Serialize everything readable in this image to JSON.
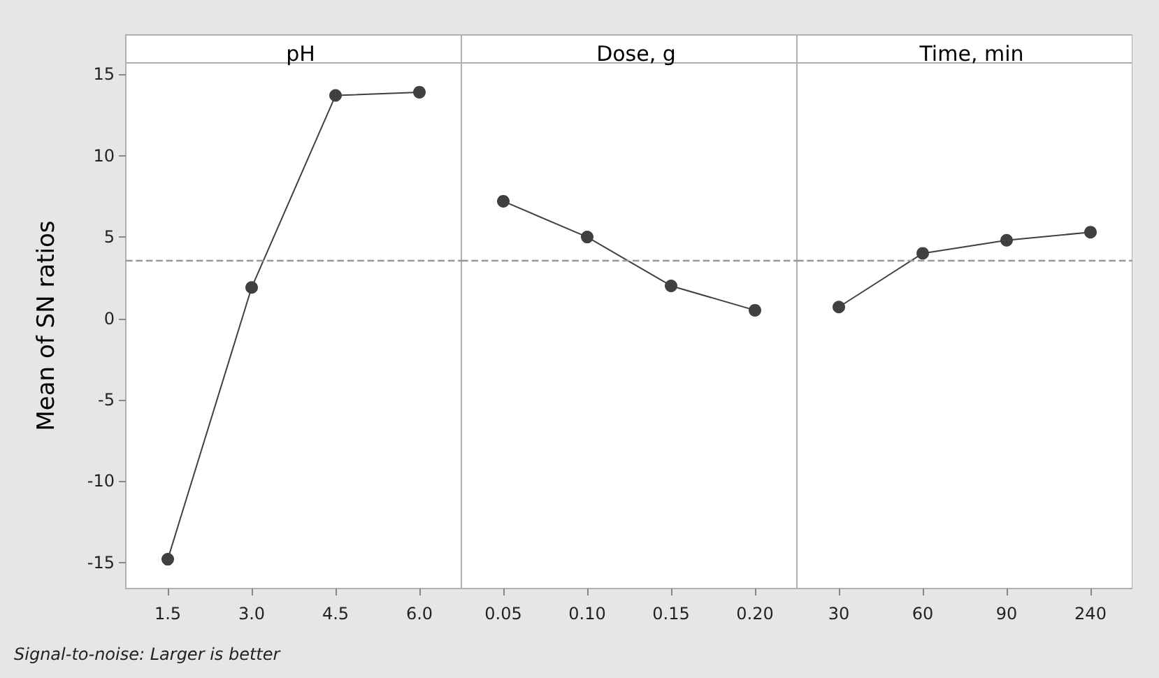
{
  "chart_data": [
    {
      "type": "line",
      "title": "pH",
      "ylabel": "Mean of SN ratios",
      "categories": [
        "1.5",
        "3.0",
        "4.5",
        "6.0"
      ],
      "series": [
        {
          "color": "#404040",
          "values": [
            -14.8,
            1.9,
            13.7,
            13.9
          ]
        }
      ],
      "ylim": [
        -16.6,
        15.7
      ],
      "yticks": [
        -15,
        -10,
        -5,
        0,
        5,
        10,
        15
      ],
      "marker": "circle",
      "line_style": "solid",
      "ref_lines": [
        {
          "axis": "y",
          "value": 3.6,
          "color": "#999999",
          "line_style": "dashed"
        }
      ],
      "annotations": [
        "Signal-to-noise: Larger is better"
      ]
    },
    {
      "type": "line",
      "title": "Dose, g",
      "categories": [
        "0.05",
        "0.10",
        "0.15",
        "0.20"
      ],
      "series": [
        {
          "color": "#404040",
          "values": [
            7.2,
            5.0,
            2.0,
            0.5
          ]
        }
      ],
      "ylim": [
        -16.6,
        15.7
      ],
      "yticks": [
        -15,
        -10,
        -5,
        0,
        5,
        10,
        15
      ],
      "marker": "circle",
      "line_style": "solid",
      "tick_labels": "x",
      "ref_lines": [
        {
          "axis": "y",
          "value": 3.6,
          "color": "#999999",
          "line_style": "dashed"
        }
      ]
    },
    {
      "type": "line",
      "title": "Time, min",
      "categories": [
        "30",
        "60",
        "90",
        "240"
      ],
      "series": [
        {
          "color": "#404040",
          "values": [
            0.7,
            4.0,
            4.8,
            5.3
          ]
        }
      ],
      "ylim": [
        -16.6,
        15.7
      ],
      "yticks": [
        -15,
        -10,
        -5,
        0,
        5,
        10,
        15
      ],
      "marker": "circle",
      "line_style": "solid",
      "tick_labels": "x",
      "ref_lines": [
        {
          "axis": "y",
          "value": 3.6,
          "color": "#999999",
          "line_style": "dashed"
        }
      ]
    }
  ]
}
